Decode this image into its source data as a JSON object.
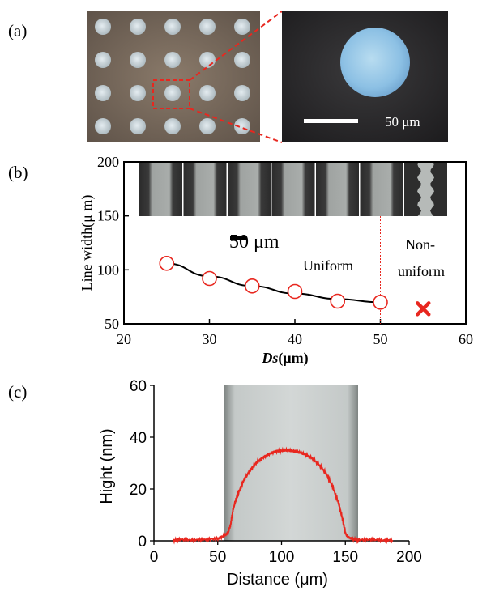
{
  "panel_labels": {
    "a": "(a)",
    "b": "(b)",
    "c": "(c)"
  },
  "panel_a": {
    "scale_bar_label": "50 μm",
    "dot_grid": {
      "rows": 4,
      "cols": 5
    },
    "highlight_color": "#e8271f"
  },
  "panel_b": {
    "scale_bar_label": "50 μm",
    "region_uniform": "Uniform",
    "region_nonuniform_1": "Non-",
    "region_nonuniform_2": "uniform",
    "strip_count": 7
  },
  "colors": {
    "marker": "#e8271f",
    "curve": "#000000",
    "profile": "#e8271f",
    "strip_bg": "#2a2a2a",
    "strip_fill": "#a6aaa8"
  },
  "chart_data": [
    {
      "type": "scatter",
      "panel": "(b)",
      "title": "",
      "xlabel": "Ds(μm)",
      "ylabel": "Line width(μ m)",
      "xlim": [
        20,
        60
      ],
      "ylim": [
        50,
        200
      ],
      "xticks": [
        20,
        30,
        40,
        50,
        60
      ],
      "yticks": [
        50,
        100,
        150,
        200
      ],
      "series": [
        {
          "marker": "open-circle",
          "x": [
            25,
            30,
            35,
            40,
            45,
            50
          ],
          "y": [
            106,
            92,
            85,
            80,
            71,
            70
          ]
        },
        {
          "marker": "cross",
          "x": [
            55
          ],
          "y": [
            64
          ]
        }
      ],
      "fit_curve": {
        "x": [
          25,
          30,
          35,
          40,
          45,
          50
        ],
        "y": [
          106,
          94,
          85,
          78,
          73,
          70
        ]
      },
      "divider_x": 50
    },
    {
      "type": "line",
      "panel": "(c)",
      "title": "",
      "xlabel": "Distance (μm)",
      "ylabel": "Hight (nm)",
      "xlim": [
        0,
        200
      ],
      "ylim": [
        0,
        60
      ],
      "xticks": [
        0,
        50,
        100,
        150,
        200
      ],
      "yticks": [
        0,
        20,
        40,
        60
      ],
      "image_span_x": [
        55,
        160
      ],
      "x": [
        15,
        20,
        30,
        40,
        50,
        55,
        58,
        60,
        62,
        65,
        70,
        75,
        80,
        85,
        90,
        95,
        100,
        105,
        110,
        115,
        120,
        125,
        130,
        135,
        140,
        145,
        148,
        150,
        152,
        155,
        160,
        170,
        180,
        187
      ],
      "y": [
        0,
        0.5,
        0.3,
        0.5,
        0.8,
        2,
        3,
        6,
        12,
        17,
        23,
        27,
        30,
        32,
        33.5,
        34.5,
        34.8,
        35,
        34.5,
        34,
        33,
        31.5,
        29,
        26,
        21,
        14,
        8,
        3,
        1.5,
        0.8,
        0.3,
        0.5,
        0.2,
        0.3
      ]
    }
  ]
}
